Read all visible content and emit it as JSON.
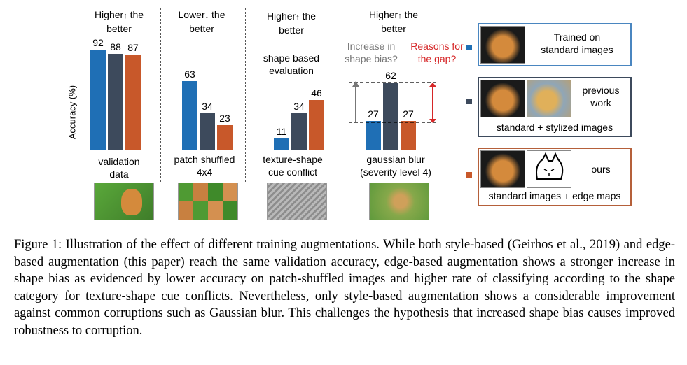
{
  "figure": {
    "panels": [
      {
        "heading": [
          "Higher",
          "↑",
          " the",
          "better"
        ],
        "xlabel": [
          "validation",
          "data"
        ],
        "thumb": "cat-image-icon"
      },
      {
        "heading": [
          "Lower",
          "↓",
          " the",
          "better"
        ],
        "xlabel": [
          "patch shuffled",
          "4x4"
        ],
        "thumb": "shuffled-cat-image-icon"
      },
      {
        "heading": [
          "Higher",
          "↑",
          " the",
          "better"
        ],
        "note": [
          "shape based",
          "evaluation"
        ],
        "xlabel": [
          "texture-shape",
          "cue conflict"
        ],
        "thumb": "texture-shape-image-icon"
      },
      {
        "heading": [
          "Higher",
          "↑",
          " the",
          "better"
        ],
        "xlabel": [
          "gaussian blur",
          "(severity level 4)"
        ],
        "thumb": "blurred-cat-image-icon"
      }
    ],
    "annotations": {
      "increase": [
        "Increase in",
        "shape bias?"
      ],
      "reasons": [
        "Reasons for",
        "the gap?"
      ]
    },
    "ylabel": "Accuracy (%)",
    "legend": [
      {
        "text": [
          "Trained on",
          "standard images"
        ],
        "color": "#1f6fb5"
      },
      {
        "text_top": [
          "previous",
          "work"
        ],
        "text": [
          "standard + stylized images"
        ],
        "color": "#3d4a5c"
      },
      {
        "text_top": [
          "ours"
        ],
        "text": [
          "standard images + edge maps"
        ],
        "color": "#c8582a"
      }
    ],
    "colors": {
      "standard": "#1f6fb5",
      "stylized": "#3d4a5c",
      "edge": "#c8582a",
      "annotation_gray": "#777777",
      "annotation_red": "#d62728"
    }
  },
  "chart_data": {
    "type": "bar",
    "categories": [
      "validation data",
      "patch shuffled 4x4",
      "texture-shape cue conflict",
      "gaussian blur (severity level 4)"
    ],
    "series": [
      {
        "name": "Trained on standard images",
        "values": [
          92,
          63,
          11,
          27
        ]
      },
      {
        "name": "standard + stylized images",
        "values": [
          88,
          34,
          34,
          62
        ]
      },
      {
        "name": "standard images + edge maps",
        "values": [
          87,
          23,
          46,
          27
        ]
      }
    ],
    "ylabel": "Accuracy (%)"
  },
  "caption": "Figure 1: Illustration of the effect of different training augmentations. While both style-based (Geirhos et al., 2019) and edge-based augmentation (this paper) reach the same validation accuracy, edge-based augmentation shows a stronger increase in shape bias as evidenced by lower accuracy on patch-shuffled images and higher rate of classifying according to the shape category for texture-shape cue conflicts. Nevertheless, only style-based augmentation shows a considerable improvement against common corruptions such as Gaussian blur. This challenges the hypothesis that increased shape bias causes improved robustness to corruption."
}
